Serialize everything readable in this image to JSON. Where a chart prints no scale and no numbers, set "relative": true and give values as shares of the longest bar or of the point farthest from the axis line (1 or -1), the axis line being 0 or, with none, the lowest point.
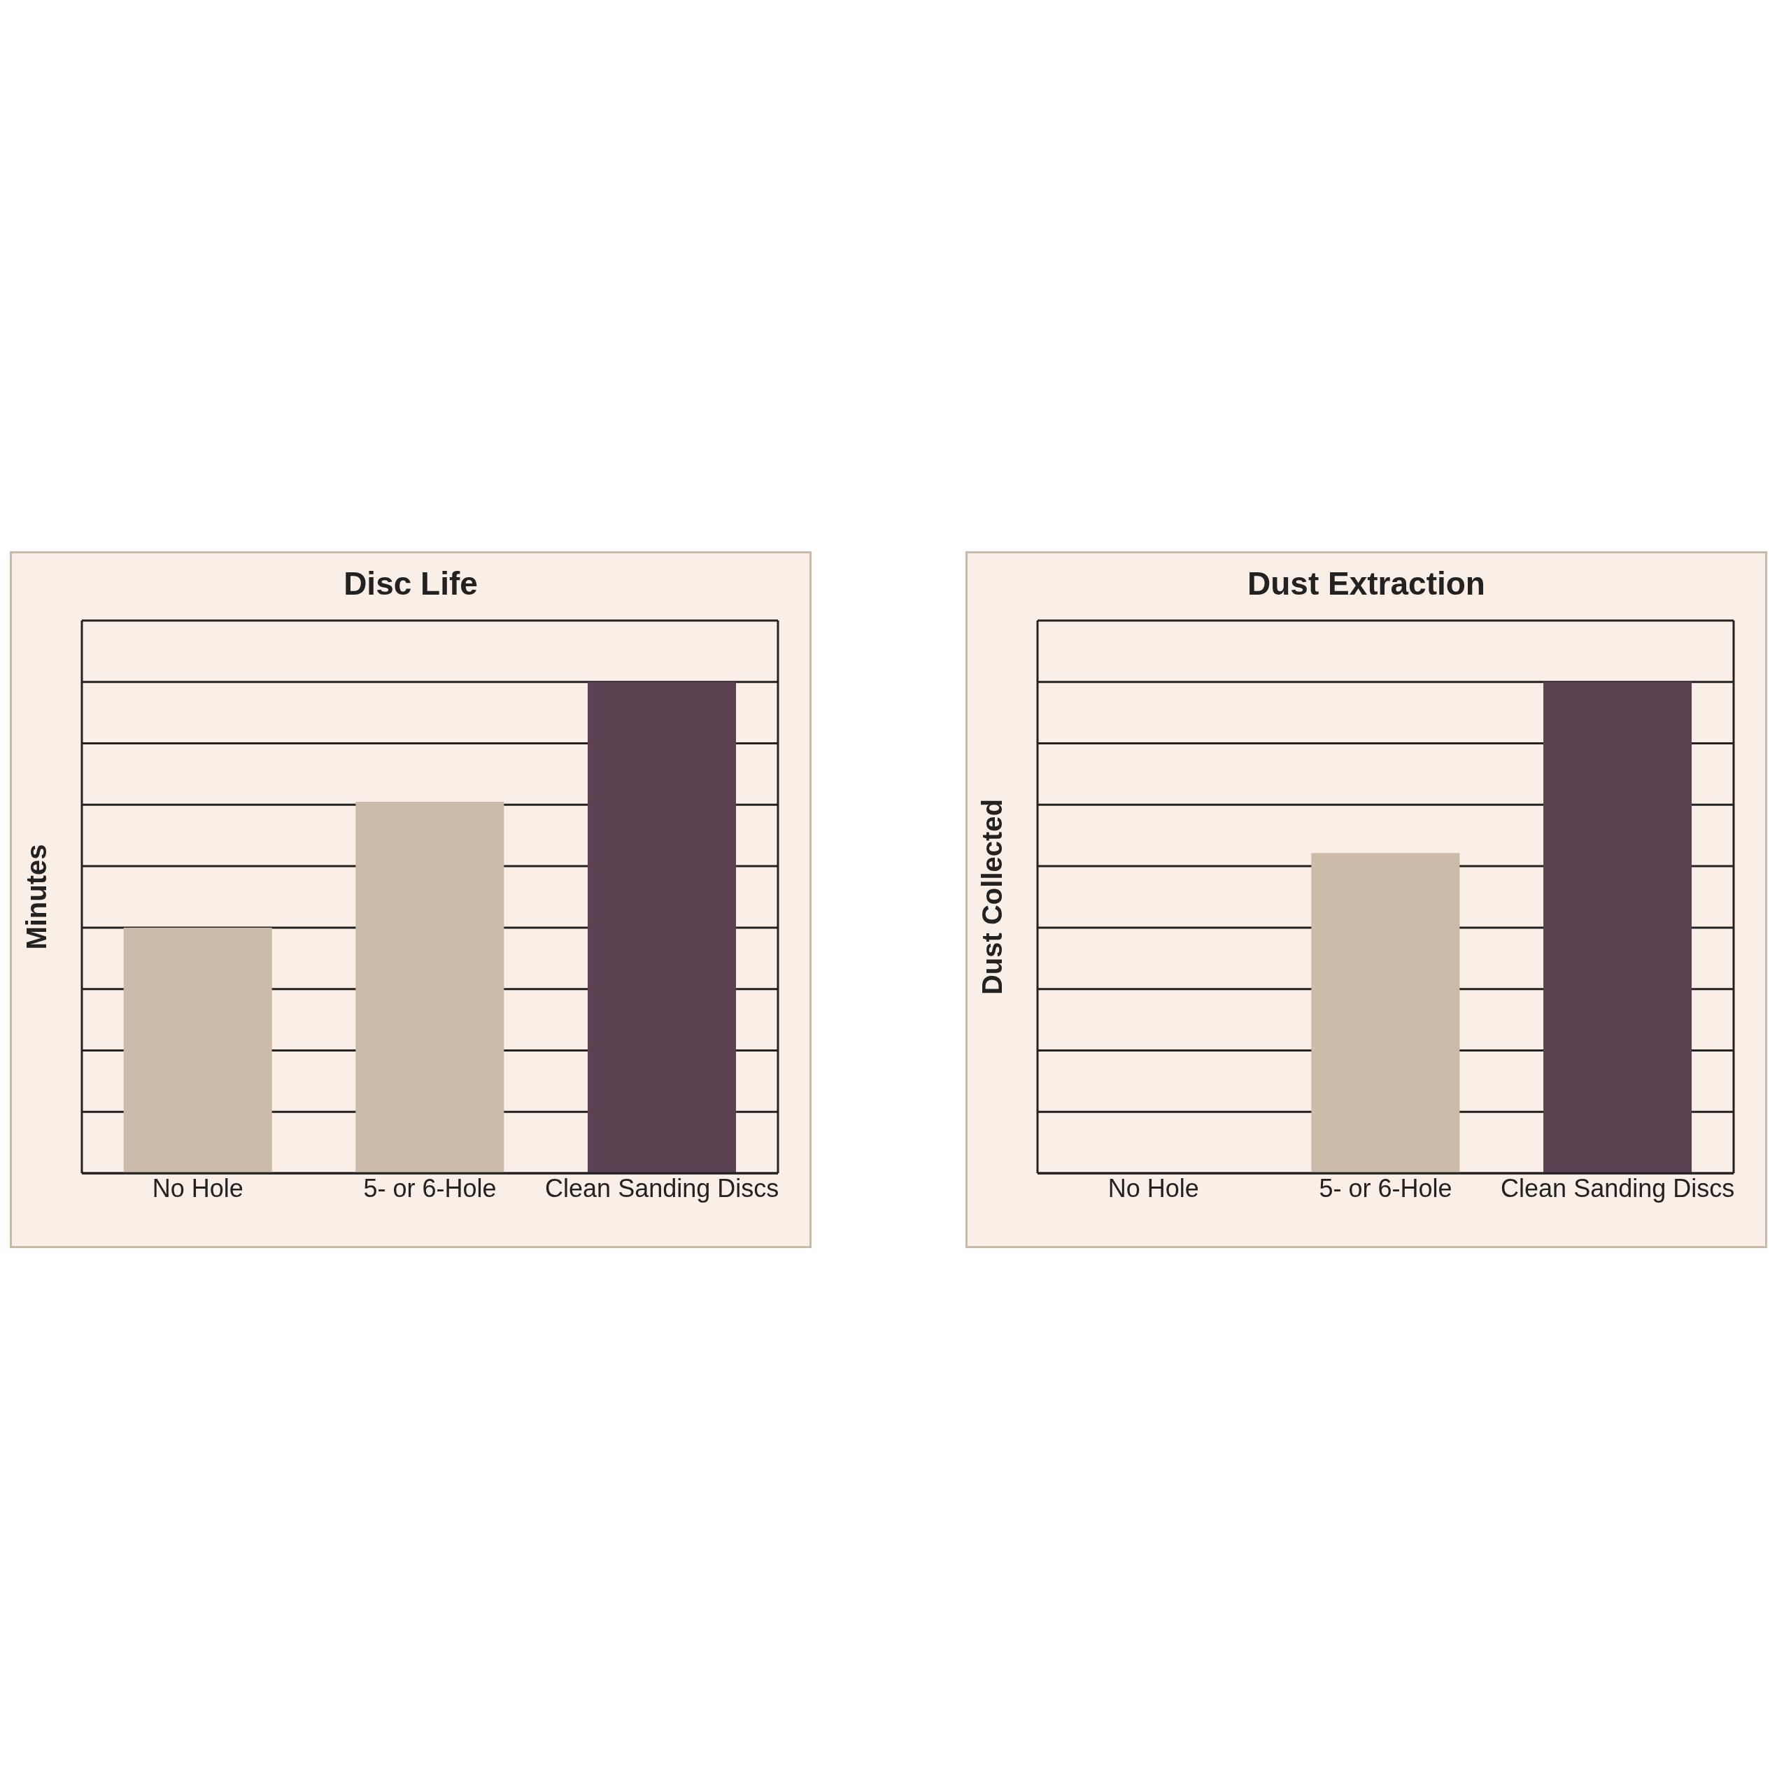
{
  "chart_data": [
    {
      "type": "bar",
      "title": "Disc Life",
      "ylabel": "Minutes",
      "categories": [
        "No Hole",
        "5- or 6-Hole",
        "Clean Sanding Discs"
      ],
      "values": [
        0.5,
        0.756,
        1
      ],
      "colors": [
        "#cbbba8",
        "#cbbba8",
        "#5c4150"
      ],
      "relative": true,
      "grid": "y"
    },
    {
      "type": "bar",
      "title": "Dust Extraction",
      "ylabel": "Dust Collected",
      "categories": [
        "No Hole",
        "5- or 6-Hole",
        "Clean Sanding Discs"
      ],
      "values": [
        0,
        0.652,
        1
      ],
      "colors": [
        "#cbbba8",
        "#cbbba8",
        "#5c4150"
      ],
      "relative": true,
      "grid": "y"
    }
  ]
}
